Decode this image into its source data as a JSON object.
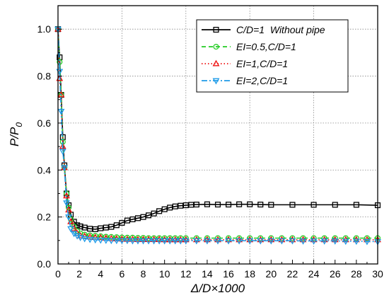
{
  "chart_data": {
    "type": "line",
    "title": "",
    "xlabel": "Δ/D×1000",
    "ylabel_main": "P/P",
    "ylabel_sub": "0",
    "xlim": [
      0,
      30
    ],
    "ylim": [
      0,
      1.1
    ],
    "xticks": [
      0,
      2,
      4,
      6,
      8,
      10,
      12,
      14,
      16,
      18,
      20,
      22,
      24,
      26,
      28,
      30
    ],
    "yticks": [
      0.0,
      0.2,
      0.4,
      0.6,
      0.8,
      1.0
    ],
    "ytick_labels": [
      "0.0",
      "0.2",
      "0.4",
      "0.6",
      "0.8",
      "1.0"
    ],
    "grid": "dotted",
    "legend_position": "top-right",
    "series": [
      {
        "name": "C/D=1  Without pipe",
        "color": "#000000",
        "dash": "solid",
        "marker": "square",
        "x": [
          0,
          0.15,
          0.3,
          0.45,
          0.6,
          0.8,
          1.0,
          1.2,
          1.5,
          1.8,
          2.1,
          2.5,
          3.0,
          3.5,
          4.0,
          4.5,
          5.0,
          5.5,
          6.0,
          6.5,
          7.0,
          7.5,
          8.0,
          8.5,
          9.0,
          9.5,
          10.0,
          10.5,
          11.0,
          11.5,
          12.0,
          12.5,
          13.0,
          14.0,
          15.0,
          16.0,
          17.0,
          18.0,
          19.0,
          20.0,
          22.0,
          24.0,
          26.0,
          28.0,
          30.0
        ],
        "y": [
          1.0,
          0.88,
          0.72,
          0.54,
          0.42,
          0.3,
          0.25,
          0.21,
          0.18,
          0.165,
          0.16,
          0.155,
          0.15,
          0.148,
          0.152,
          0.155,
          0.158,
          0.165,
          0.175,
          0.185,
          0.19,
          0.195,
          0.2,
          0.207,
          0.215,
          0.225,
          0.233,
          0.24,
          0.245,
          0.248,
          0.25,
          0.252,
          0.253,
          0.254,
          0.253,
          0.253,
          0.254,
          0.254,
          0.253,
          0.252,
          0.252,
          0.252,
          0.252,
          0.252,
          0.25
        ]
      },
      {
        "name": "EI=0.5,C/D=1",
        "color": "#22cc22",
        "dash": "dashed",
        "marker": "circle",
        "x": [
          0,
          0.15,
          0.3,
          0.45,
          0.6,
          0.8,
          1.0,
          1.2,
          1.5,
          1.8,
          2.1,
          2.5,
          3.0,
          3.5,
          4.0,
          4.5,
          5.0,
          5.5,
          6.0,
          6.5,
          7.0,
          7.5,
          8.0,
          8.5,
          9.0,
          9.5,
          10.0,
          10.5,
          11.0,
          11.5,
          12.0,
          13.0,
          14.0,
          15.0,
          16.0,
          17.0,
          18.0,
          19.0,
          20.0,
          21.0,
          22.0,
          23.0,
          24.0,
          25.0,
          26.0,
          27.0,
          28.0,
          29.0,
          30.0
        ],
        "y": [
          1.0,
          0.86,
          0.72,
          0.52,
          0.41,
          0.3,
          0.24,
          0.19,
          0.16,
          0.14,
          0.13,
          0.125,
          0.122,
          0.12,
          0.118,
          0.116,
          0.115,
          0.114,
          0.113,
          0.112,
          0.112,
          0.111,
          0.111,
          0.11,
          0.11,
          0.11,
          0.11,
          0.11,
          0.11,
          0.11,
          0.11,
          0.11,
          0.11,
          0.11,
          0.11,
          0.11,
          0.11,
          0.11,
          0.11,
          0.11,
          0.11,
          0.11,
          0.11,
          0.11,
          0.11,
          0.11,
          0.11,
          0.11,
          0.11
        ]
      },
      {
        "name": "EI=1,C/D=1",
        "color": "#ee1111",
        "dash": "dotted",
        "marker": "triangle-up",
        "x": [
          0,
          0.15,
          0.3,
          0.45,
          0.6,
          0.8,
          1.0,
          1.2,
          1.5,
          1.8,
          2.1,
          2.5,
          3.0,
          3.5,
          4.0,
          4.5,
          5.0,
          5.5,
          6.0,
          6.5,
          7.0,
          7.5,
          8.0,
          8.5,
          9.0,
          9.5,
          10.0,
          10.5,
          11.0,
          11.5,
          12.0,
          13.0,
          14.0,
          15.0,
          16.0,
          17.0,
          18.0,
          19.0,
          20.0,
          21.0,
          22.0,
          23.0,
          24.0,
          25.0,
          26.0,
          27.0,
          28.0,
          29.0,
          30.0
        ],
        "y": [
          1.0,
          0.79,
          0.72,
          0.5,
          0.41,
          0.29,
          0.23,
          0.18,
          0.15,
          0.13,
          0.12,
          0.118,
          0.115,
          0.113,
          0.112,
          0.11,
          0.108,
          0.107,
          0.106,
          0.105,
          0.105,
          0.104,
          0.104,
          0.104,
          0.104,
          0.104,
          0.103,
          0.103,
          0.103,
          0.103,
          0.103,
          0.103,
          0.103,
          0.103,
          0.103,
          0.103,
          0.103,
          0.103,
          0.103,
          0.103,
          0.103,
          0.103,
          0.103,
          0.103,
          0.103,
          0.103,
          0.103,
          0.103,
          0.103
        ]
      },
      {
        "name": "EI=2,C/D=1",
        "color": "#1e9be8",
        "dash": "dashdot",
        "marker": "triangle-down",
        "x": [
          0,
          0.15,
          0.3,
          0.45,
          0.6,
          0.8,
          1.0,
          1.2,
          1.5,
          1.8,
          2.1,
          2.5,
          3.0,
          3.5,
          4.0,
          4.5,
          5.0,
          5.5,
          6.0,
          6.5,
          7.0,
          7.5,
          8.0,
          8.5,
          9.0,
          9.5,
          10.0,
          10.5,
          11.0,
          11.5,
          12.0,
          13.0,
          14.0,
          15.0,
          16.0,
          17.0,
          18.0,
          19.0,
          20.0,
          21.0,
          22.0,
          23.0,
          24.0,
          25.0,
          26.0,
          27.0,
          28.0,
          29.0,
          30.0
        ],
        "y": [
          1.0,
          0.82,
          0.65,
          0.48,
          0.41,
          0.26,
          0.2,
          0.15,
          0.13,
          0.12,
          0.113,
          0.108,
          0.105,
          0.103,
          0.102,
          0.101,
          0.1,
          0.1,
          0.1,
          0.1,
          0.099,
          0.099,
          0.099,
          0.099,
          0.099,
          0.099,
          0.099,
          0.099,
          0.099,
          0.099,
          0.099,
          0.099,
          0.099,
          0.099,
          0.099,
          0.099,
          0.099,
          0.099,
          0.099,
          0.099,
          0.099,
          0.098,
          0.098,
          0.098,
          0.098,
          0.097,
          0.097,
          0.096,
          0.095
        ]
      }
    ]
  }
}
